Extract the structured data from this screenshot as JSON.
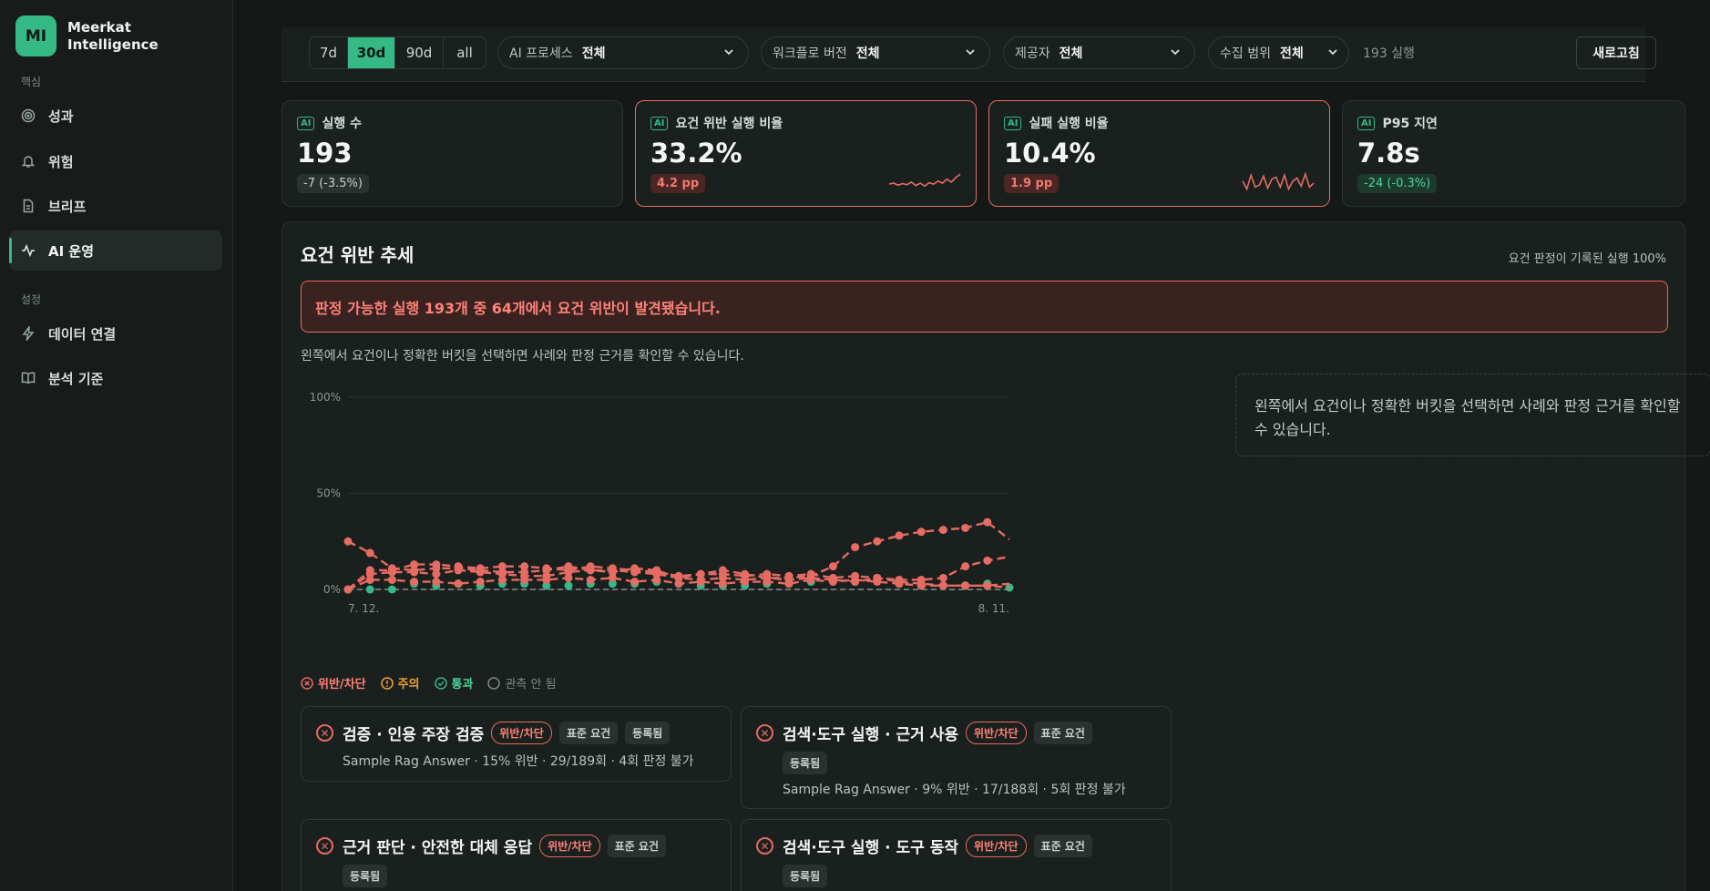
{
  "brand": {
    "initials": "MI",
    "name_line1": "Meerkat",
    "name_line2": "Intelligence"
  },
  "sidebar": {
    "section_core": "핵심",
    "section_settings": "설정",
    "items": [
      {
        "label": "성과",
        "icon": "target-icon"
      },
      {
        "label": "위험",
        "icon": "bell-icon"
      },
      {
        "label": "브리프",
        "icon": "document-icon"
      },
      {
        "label": "AI 운영",
        "icon": "activity-icon",
        "active": true
      }
    ],
    "settings_items": [
      {
        "label": "데이터 연결",
        "icon": "bolt-icon"
      },
      {
        "label": "분석 기준",
        "icon": "book-icon"
      }
    ]
  },
  "filters": {
    "ranges": [
      "7d",
      "30d",
      "90d",
      "all"
    ],
    "active_range": "30d",
    "ai_process": {
      "label": "AI 프로세스",
      "value": "전체"
    },
    "workflow_version": {
      "label": "워크플로 버전",
      "value": "전체"
    },
    "provider": {
      "label": "제공자",
      "value": "전체"
    },
    "collection_scope": {
      "label": "수집 범위",
      "value": "전체"
    },
    "run_count": "193 실행",
    "refresh_label": "새로고침"
  },
  "kpis": [
    {
      "tag": "AI",
      "label": "실행 수",
      "value": "193",
      "delta": "-7 (-3.5%)",
      "tone": "neutral"
    },
    {
      "tag": "AI",
      "label": "요건 위반 실행 비율",
      "value": "33.2%",
      "delta": "4.2 pp",
      "tone": "bad",
      "spark": [
        0.45,
        0.5,
        0.4,
        0.48,
        0.42,
        0.55,
        0.38,
        0.5,
        0.35,
        0.52,
        0.45,
        0.6,
        0.5,
        0.7,
        0.55,
        0.78,
        0.95
      ]
    },
    {
      "tag": "AI",
      "label": "실패 실행 비율",
      "value": "10.4%",
      "delta": "1.9 pp",
      "tone": "bad",
      "spark": [
        0.6,
        0.2,
        0.9,
        0.3,
        0.4,
        0.85,
        0.25,
        0.7,
        0.8,
        0.3,
        0.9,
        0.2,
        0.6,
        0.75,
        0.35,
        0.95,
        0.3,
        0.5
      ]
    },
    {
      "tag": "AI",
      "label": "P95 지연",
      "value": "7.8s",
      "delta": "-24 (-0.3%)",
      "tone": "good"
    }
  ],
  "trend": {
    "title": "요건 위반 추세",
    "note": "요건 판정이 기록된 실행 100%",
    "banner": "판정 가능한 실행 193개 중 64개에서 요건 위반이 발견됐습니다.",
    "hint": "왼쪽에서 요건이나 정확한 버킷을 선택하면 사례와 판정 근거를 확인할 수 있습니다.",
    "side_hint": "왼쪽에서 요건이나 정확한 버킷을 선택하면 사례와 판정 근거를 확인할 수 있습니다.",
    "legend": {
      "fail": "위반/차단",
      "warn": "주의",
      "pass": "통과",
      "none": "관측 안 됨"
    }
  },
  "chart_data": {
    "type": "line",
    "x_start_label": "7. 12.",
    "x_end_label": "8. 11.",
    "y_ticks": [
      "0%",
      "50%",
      "100%"
    ],
    "ylim": [
      0,
      100
    ],
    "colors": {
      "fail": "#e56b63",
      "pass": "#34b987",
      "none": "#6b7571"
    },
    "series": [
      {
        "values": [
          25,
          19,
          11,
          10,
          11,
          11,
          10,
          9,
          9,
          10,
          12,
          10,
          10,
          9,
          8,
          6,
          8,
          10,
          8,
          6,
          6,
          7,
          12,
          22,
          25,
          28,
          30,
          31,
          32,
          35,
          26
        ]
      },
      {
        "values": [
          0,
          10,
          10,
          13,
          13,
          12,
          11,
          12,
          12,
          11,
          10,
          12,
          11,
          10,
          9,
          7,
          8,
          8,
          7,
          8,
          7,
          8,
          6,
          7,
          6,
          5,
          5,
          6,
          12,
          15,
          17
        ]
      },
      {
        "values": [
          0,
          8,
          9,
          9,
          8,
          10,
          9,
          8,
          7,
          7,
          9,
          10,
          9,
          11,
          10,
          6,
          5,
          6,
          5,
          6,
          5,
          6,
          5,
          4,
          6,
          4,
          3,
          2,
          2,
          2,
          3
        ]
      },
      {
        "values": [
          0,
          5,
          5,
          4,
          4,
          3,
          4,
          5,
          5,
          5,
          6,
          5,
          6,
          4,
          5,
          3,
          4,
          3,
          4,
          4,
          3,
          5,
          4,
          5,
          4,
          3,
          2,
          2,
          2,
          2,
          1
        ]
      }
    ],
    "pass_points": [
      0,
      0,
      0,
      3,
      2,
      3,
      2,
      3,
      3,
      2,
      2,
      3,
      3,
      3,
      4,
      3,
      2,
      2,
      2,
      3,
      3,
      4,
      5,
      4,
      6,
      3,
      2,
      2,
      2,
      3,
      1
    ]
  },
  "cases": [
    {
      "title": "검증 · 인용 주장 검증",
      "status": "위반/차단",
      "chips": [
        "표준 요건",
        "등록됨"
      ],
      "meta": "Sample Rag Answer · 15% 위반 · 29/189회 · 4회 판정 불가"
    },
    {
      "title": "검색·도구 실행 · 근거 사용",
      "status": "위반/차단",
      "chips": [
        "표준 요건",
        "등록됨"
      ],
      "meta": "Sample Rag Answer · 9% 위반 · 17/188회 · 5회 판정 불가"
    },
    {
      "title": "근거 판단 · 안전한 대체 응답",
      "status": "위반/차단",
      "chips": [
        "표준 요건",
        "등록됨"
      ],
      "meta": ""
    },
    {
      "title": "검색·도구 실행 · 도구 동작",
      "status": "위반/차단",
      "chips": [
        "표준 요건",
        "등록됨"
      ],
      "meta": ""
    }
  ]
}
